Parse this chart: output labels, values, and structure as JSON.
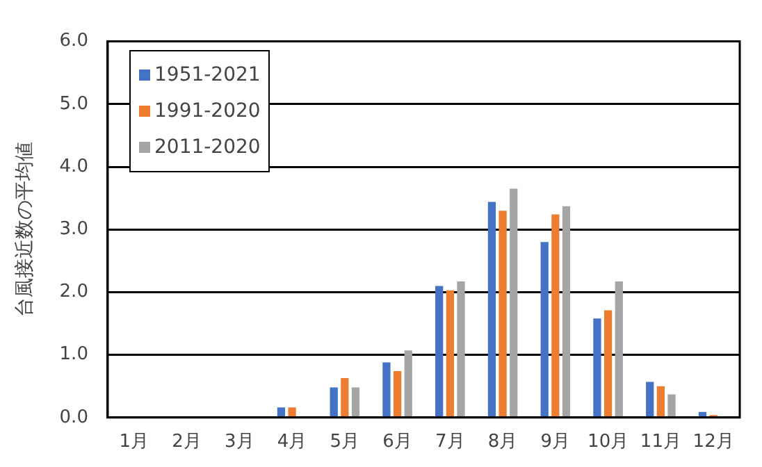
{
  "chart_data": {
    "type": "bar",
    "ylabel": "台風接近数の平均値",
    "categories": [
      "1月",
      "2月",
      "3月",
      "4月",
      "5月",
      "6月",
      "7月",
      "8月",
      "9月",
      "10月",
      "11月",
      "12月"
    ],
    "series": [
      {
        "name": "1951-2021",
        "color": "#4472c4",
        "values": [
          0,
          0,
          0,
          0.16,
          0.48,
          0.88,
          2.1,
          3.44,
          2.8,
          1.58,
          0.57,
          0.09
        ]
      },
      {
        "name": "1991-2020",
        "color": "#ed7d31",
        "values": [
          0,
          0,
          0,
          0.16,
          0.63,
          0.74,
          2.03,
          3.3,
          3.24,
          1.71,
          0.5,
          0.04
        ]
      },
      {
        "name": "2011-2020",
        "color": "#a5a5a5",
        "values": [
          0,
          0,
          0,
          0,
          0.48,
          1.07,
          2.17,
          3.65,
          3.37,
          2.17,
          0.37,
          0
        ]
      }
    ],
    "ylim": [
      0,
      6
    ],
    "yticks": [
      {
        "value": 0,
        "label": "0.0"
      },
      {
        "value": 1,
        "label": "1.0"
      },
      {
        "value": 2,
        "label": "2.0"
      },
      {
        "value": 3,
        "label": "3.0"
      },
      {
        "value": 4,
        "label": "4.0"
      },
      {
        "value": 5,
        "label": "5.0"
      },
      {
        "value": 6,
        "label": "6.0"
      }
    ],
    "grid": "y",
    "legend": "top left"
  }
}
